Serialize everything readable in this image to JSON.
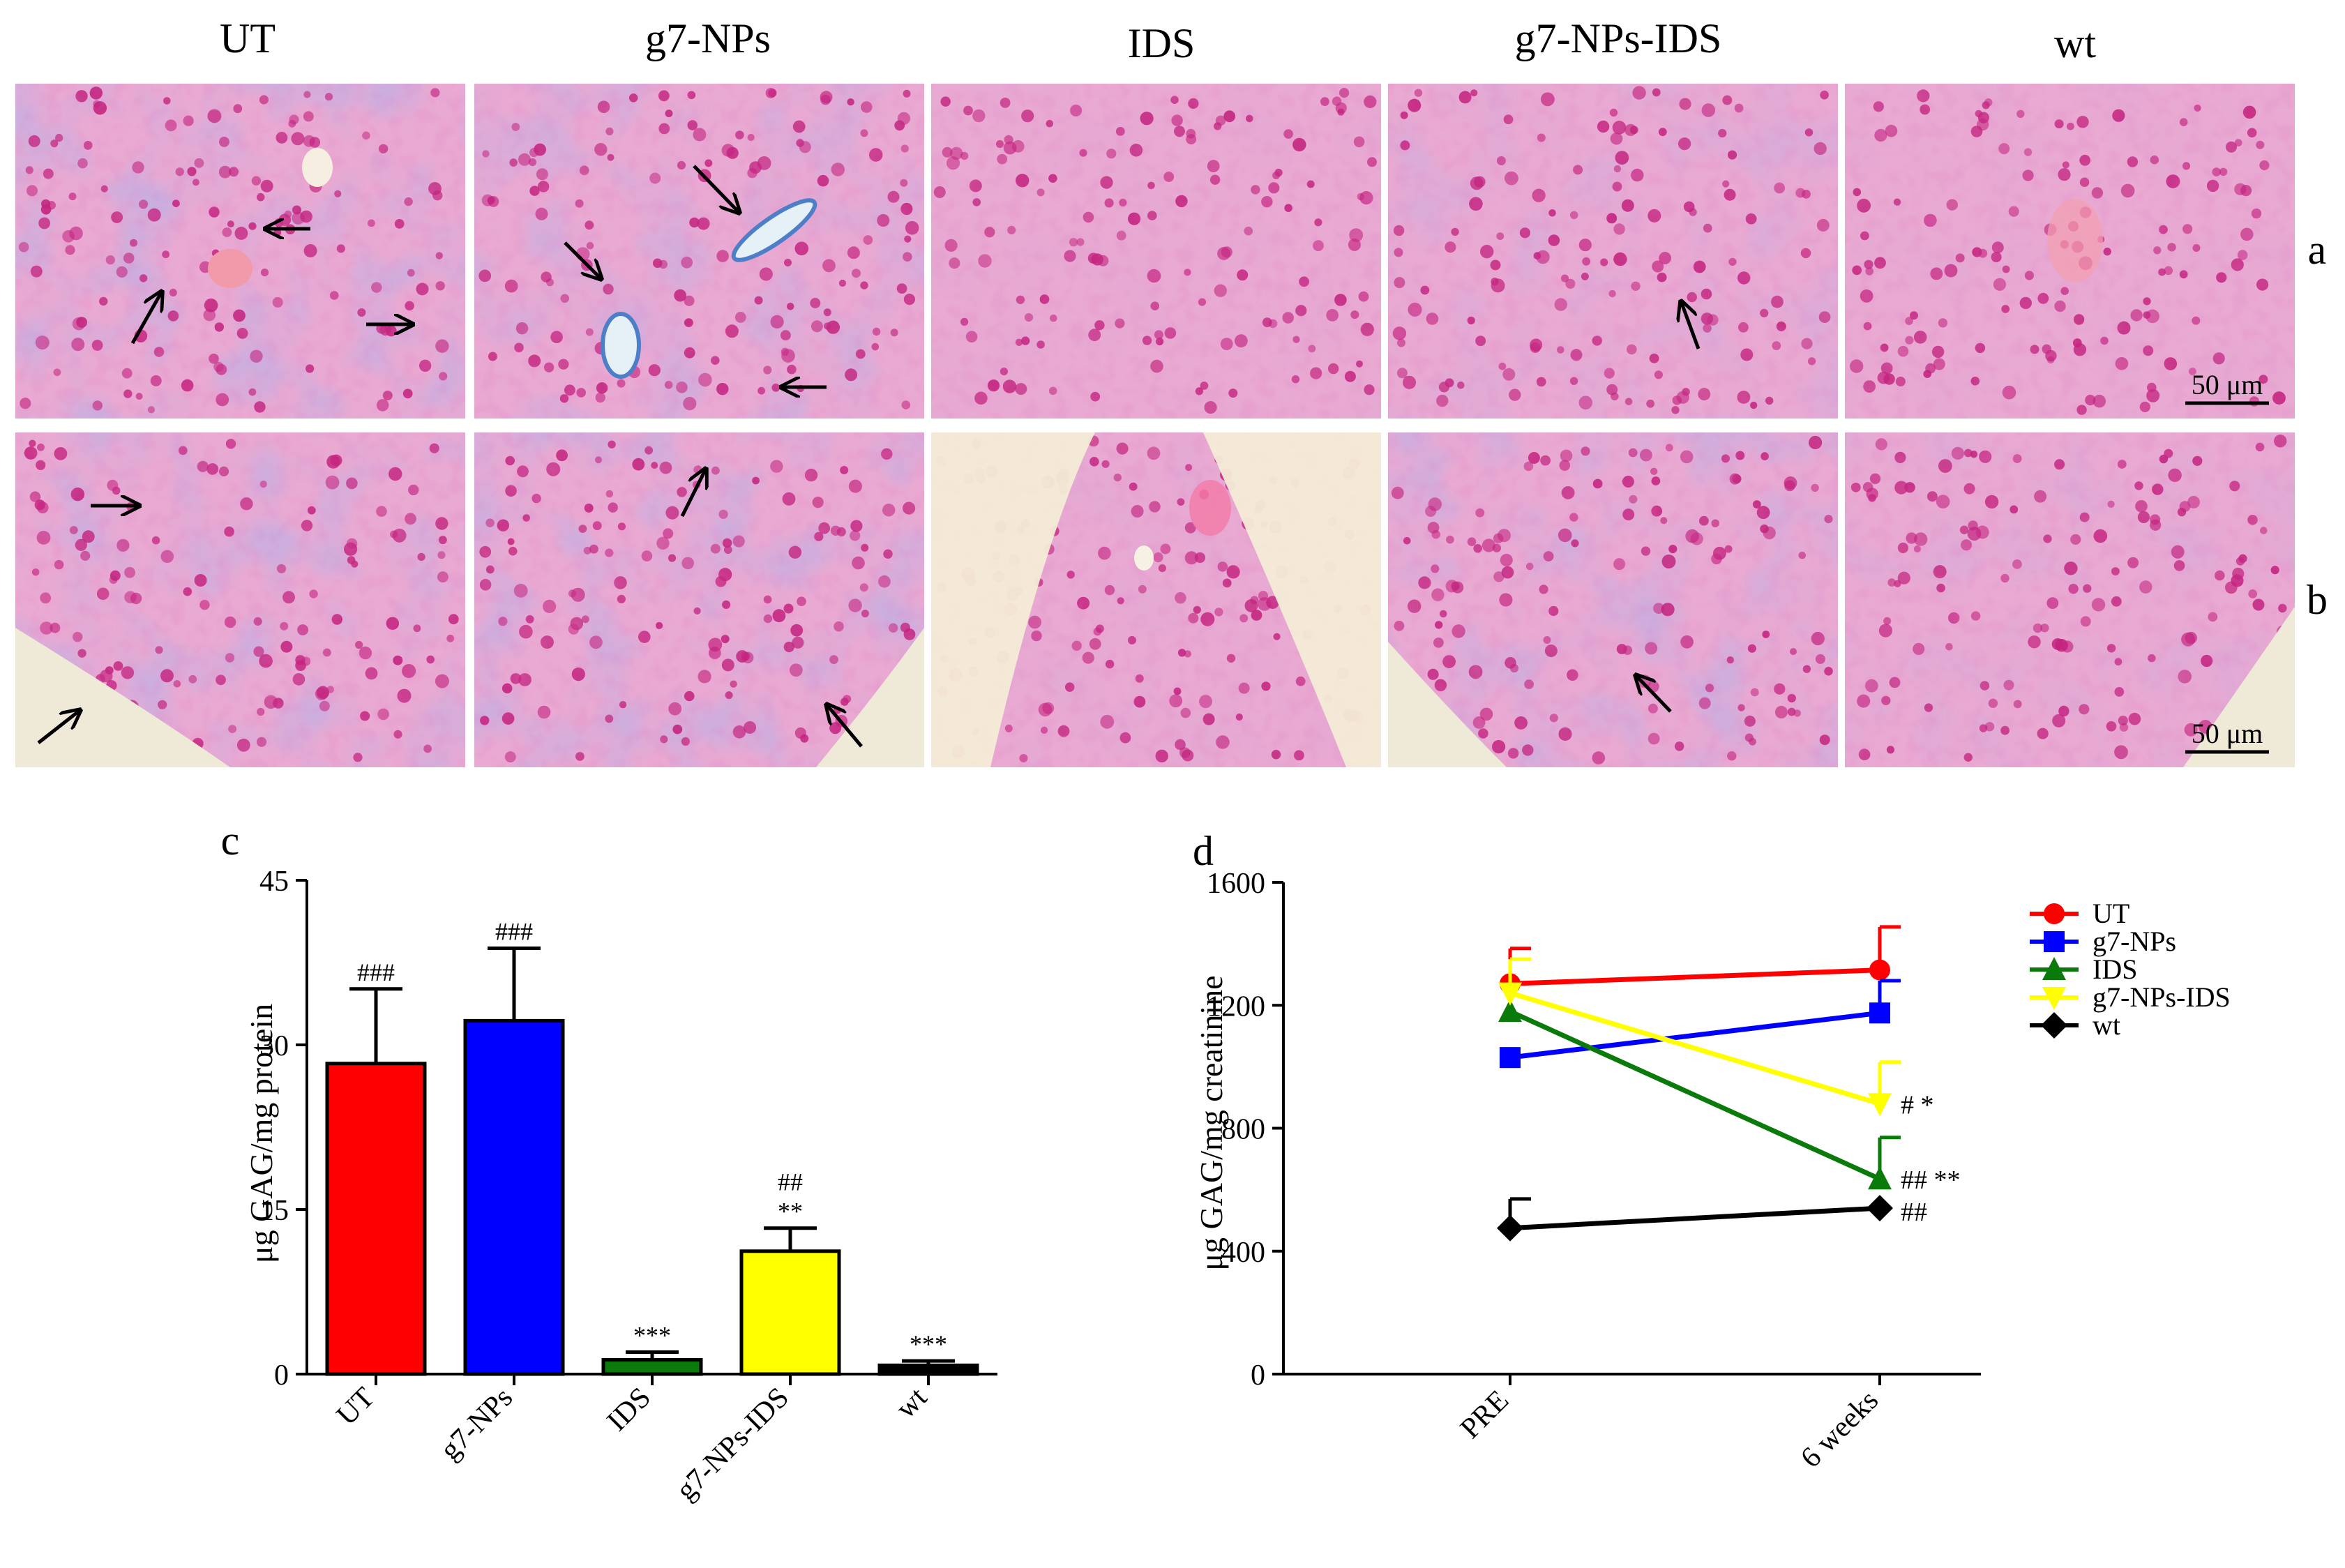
{
  "figure": {
    "group_titles": [
      "UT",
      "g7-NPs",
      "IDS",
      "g7-NPs-IDS",
      "wt"
    ],
    "row_labels": [
      "a",
      "b"
    ],
    "scale_bar_label": "50 μm",
    "panel_c_label": "c",
    "panel_d_label": "d"
  },
  "colors": {
    "UT": "#ff0000",
    "g7-NPs": "#0000ff",
    "IDS": "#0a7a0a",
    "g7-NPs-IDS": "#ffff00",
    "wt": "#000000",
    "tissue_pink": "#e8a9d2",
    "tissue_nuclei": "#c4247f",
    "tissue_blue": "#7e7ed0"
  },
  "chart_data": [
    {
      "type": "bar",
      "panel": "c",
      "title": "",
      "xlabel": "",
      "ylabel": "μg GAG/mg protein",
      "categories": [
        "UT",
        "g7-NPs",
        "IDS",
        "g7-NPs-IDS",
        "wt"
      ],
      "values": [
        28.3,
        32.2,
        1.3,
        11.2,
        0.8
      ],
      "errors": [
        6.8,
        6.6,
        0.7,
        2.1,
        0.4
      ],
      "annotations": [
        [
          "###"
        ],
        [
          "###"
        ],
        [
          "***"
        ],
        [
          "**",
          "##"
        ],
        [
          "***"
        ]
      ],
      "ylim": [
        0,
        45
      ],
      "yticks": [
        0,
        15,
        30,
        45
      ],
      "grid": false
    },
    {
      "type": "line",
      "panel": "d",
      "title": "",
      "xlabel": "",
      "ylabel": "μg GAG/mg creatinine",
      "categories": [
        "PRE",
        "6 weeks"
      ],
      "ylim": [
        0,
        1600
      ],
      "yticks": [
        0,
        400,
        800,
        1200,
        1600
      ],
      "grid": false,
      "legend_position": "right",
      "series": [
        {
          "name": "UT",
          "values": [
            1270,
            1315
          ],
          "errors": [
            115,
            140
          ],
          "marker": "circle",
          "annotation": ""
        },
        {
          "name": "g7-NPs",
          "values": [
            1030,
            1175
          ],
          "errors": [
            0,
            105
          ],
          "marker": "square",
          "annotation": ""
        },
        {
          "name": "IDS",
          "values": [
            1180,
            635
          ],
          "errors": [
            0,
            135
          ],
          "marker": "triangle-up",
          "annotation": "## **"
        },
        {
          "name": "g7-NPs-IDS",
          "values": [
            1240,
            880
          ],
          "errors": [
            110,
            135
          ],
          "marker": "triangle-down",
          "annotation": "# *"
        },
        {
          "name": "wt",
          "values": [
            475,
            540
          ],
          "errors": [
            95,
            0
          ],
          "marker": "diamond",
          "annotation": "##"
        }
      ]
    }
  ]
}
